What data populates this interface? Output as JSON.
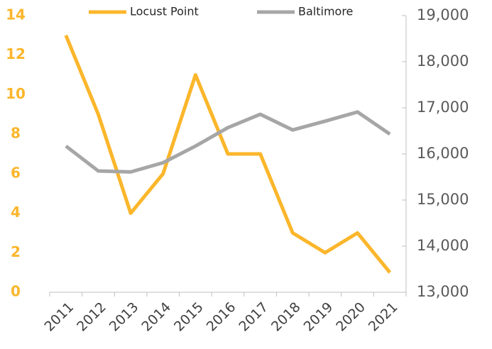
{
  "chart_data": {
    "type": "line",
    "categories": [
      "2011",
      "2012",
      "2013",
      "2014",
      "2015",
      "2016",
      "2017",
      "2018",
      "2019",
      "2020",
      "2021"
    ],
    "series": [
      {
        "name": "Locust Point",
        "color": "#fbb62b",
        "values": [
          13,
          9,
          4,
          6,
          11,
          7,
          7,
          3,
          2,
          3,
          1
        ]
      },
      {
        "name": "Baltimore",
        "color": "#a6a6a6",
        "axis": "y2",
        "values": [
          16170,
          15630,
          15610,
          15810,
          16170,
          16570,
          16860,
          16520,
          16710,
          16910,
          16430
        ]
      }
    ],
    "ylim": [
      0,
      14
    ],
    "yticks": [
      0,
      2,
      4,
      6,
      8,
      10,
      12,
      14
    ],
    "y2lim": [
      13000,
      19000
    ],
    "y2ticks": [
      {
        "value": 13000,
        "label": "13,000"
      },
      {
        "value": 14000,
        "label": "14,000"
      },
      {
        "value": 15000,
        "label": "15,000"
      },
      {
        "value": 16000,
        "label": "16,000"
      },
      {
        "value": 17000,
        "label": "17,000"
      },
      {
        "value": 18000,
        "label": "18,000"
      },
      {
        "value": 19000,
        "label": "19,000"
      }
    ],
    "y_tick_color": "#fbb62b",
    "grid": false,
    "legend": "top"
  }
}
